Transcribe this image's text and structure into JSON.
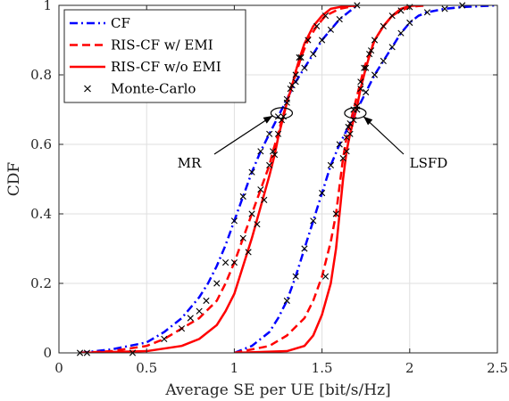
{
  "chart_data": {
    "type": "line",
    "xlabel": "Average SE per UE [bit/s/Hz]",
    "ylabel": "CDF",
    "xlim": [
      0,
      2.5
    ],
    "ylim": [
      0,
      1
    ],
    "xticks": [
      0,
      0.5,
      1,
      1.5,
      2,
      2.5
    ],
    "xtick_labels": [
      "0",
      "0.5",
      "1",
      "1.5",
      "2",
      "2.5"
    ],
    "yticks": [
      0,
      0.2,
      0.4,
      0.6,
      0.8,
      1
    ],
    "ytick_labels": [
      "0",
      "0.2",
      "0.4",
      "0.6",
      "0.8",
      "1"
    ],
    "grid": true,
    "legend_position": "top-left",
    "series": [
      {
        "name": "CF",
        "group": "MR",
        "style": "dashdot",
        "color": "#0000ff",
        "x": [
          0.12,
          0.3,
          0.5,
          0.6,
          0.7,
          0.8,
          0.85,
          0.9,
          0.95,
          1.0,
          1.05,
          1.1,
          1.15,
          1.2,
          1.25,
          1.3,
          1.35,
          1.4,
          1.45,
          1.5,
          1.55,
          1.6,
          1.65,
          1.7
        ],
        "y": [
          0,
          0.01,
          0.03,
          0.06,
          0.1,
          0.16,
          0.2,
          0.25,
          0.31,
          0.38,
          0.45,
          0.52,
          0.58,
          0.63,
          0.68,
          0.73,
          0.78,
          0.82,
          0.86,
          0.9,
          0.93,
          0.96,
          0.98,
          1.0
        ]
      },
      {
        "name": "RIS-CF w/ EMI",
        "group": "MR",
        "style": "dashed",
        "color": "#ff0000",
        "x": [
          0.12,
          0.3,
          0.5,
          0.6,
          0.7,
          0.8,
          0.9,
          0.95,
          1.0,
          1.05,
          1.1,
          1.15,
          1.2,
          1.22,
          1.25,
          1.27,
          1.3,
          1.32,
          1.35,
          1.38,
          1.42,
          1.47,
          1.52,
          1.6,
          1.7
        ],
        "y": [
          0,
          0.005,
          0.02,
          0.04,
          0.07,
          0.1,
          0.15,
          0.2,
          0.26,
          0.33,
          0.4,
          0.47,
          0.54,
          0.58,
          0.63,
          0.67,
          0.72,
          0.76,
          0.8,
          0.85,
          0.9,
          0.94,
          0.97,
          0.99,
          1.0
        ]
      },
      {
        "name": "RIS-CF w/o EMI",
        "group": "MR",
        "style": "solid",
        "color": "#ff0000",
        "x": [
          0.12,
          0.5,
          0.7,
          0.8,
          0.9,
          0.95,
          1.0,
          1.05,
          1.1,
          1.15,
          1.2,
          1.23,
          1.25,
          1.28,
          1.3,
          1.33,
          1.35,
          1.38,
          1.4,
          1.45,
          1.5,
          1.55,
          1.6,
          1.7
        ],
        "y": [
          0,
          0.005,
          0.02,
          0.04,
          0.08,
          0.12,
          0.17,
          0.25,
          0.33,
          0.42,
          0.51,
          0.57,
          0.62,
          0.68,
          0.72,
          0.77,
          0.81,
          0.86,
          0.89,
          0.94,
          0.97,
          0.99,
          0.995,
          1.0
        ]
      },
      {
        "name": "CF",
        "group": "LSFD",
        "style": "dashdot",
        "color": "#0000ff",
        "x": [
          1.0,
          1.1,
          1.2,
          1.25,
          1.3,
          1.35,
          1.4,
          1.45,
          1.5,
          1.55,
          1.6,
          1.65,
          1.7,
          1.75,
          1.8,
          1.85,
          1.9,
          1.95,
          2.0,
          2.05,
          2.1,
          2.2,
          2.3,
          2.5
        ],
        "y": [
          0,
          0.02,
          0.06,
          0.1,
          0.15,
          0.22,
          0.3,
          0.38,
          0.46,
          0.54,
          0.6,
          0.65,
          0.7,
          0.75,
          0.8,
          0.84,
          0.88,
          0.92,
          0.95,
          0.97,
          0.98,
          0.99,
          0.995,
          1.0
        ]
      },
      {
        "name": "RIS-CF w/ EMI",
        "group": "LSFD",
        "style": "dashed",
        "color": "#ff0000",
        "x": [
          1.0,
          1.2,
          1.3,
          1.4,
          1.45,
          1.5,
          1.55,
          1.58,
          1.6,
          1.62,
          1.64,
          1.66,
          1.68,
          1.7,
          1.72,
          1.74,
          1.77,
          1.8,
          1.85,
          1.9,
          1.95,
          2.0,
          2.05,
          2.1
        ],
        "y": [
          0,
          0.02,
          0.05,
          0.1,
          0.15,
          0.22,
          0.32,
          0.4,
          0.48,
          0.56,
          0.62,
          0.66,
          0.7,
          0.74,
          0.78,
          0.82,
          0.86,
          0.9,
          0.94,
          0.97,
          0.985,
          0.995,
          0.998,
          1.0
        ]
      },
      {
        "name": "RIS-CF w/o EMI",
        "group": "LSFD",
        "style": "solid",
        "color": "#ff0000",
        "x": [
          1.0,
          1.3,
          1.4,
          1.45,
          1.5,
          1.55,
          1.58,
          1.6,
          1.62,
          1.64,
          1.66,
          1.68,
          1.7,
          1.72,
          1.75,
          1.78,
          1.8,
          1.85,
          1.9,
          1.95,
          2.0,
          2.05
        ],
        "y": [
          0,
          0.005,
          0.02,
          0.05,
          0.11,
          0.2,
          0.3,
          0.4,
          0.5,
          0.58,
          0.63,
          0.67,
          0.71,
          0.76,
          0.82,
          0.87,
          0.9,
          0.94,
          0.97,
          0.99,
          0.998,
          1.0
        ]
      },
      {
        "name": "Monte-Carlo",
        "style": "markers-x",
        "color": "#000000",
        "x": [
          0.12,
          0.16,
          0.42,
          0.6,
          0.7,
          0.75,
          0.8,
          0.84,
          0.9,
          0.95,
          1.0,
          1.05,
          1.1,
          1.15,
          1.2,
          1.25,
          1.3,
          1.35,
          1.4,
          1.45,
          1.5,
          1.55,
          1.6,
          1.7,
          1.0,
          1.05,
          1.1,
          1.15,
          1.2,
          1.22,
          1.25,
          1.27,
          1.3,
          1.32,
          1.35,
          1.38,
          1.42,
          1.47,
          1.52,
          1.08,
          1.13,
          1.17,
          1.23,
          1.28,
          1.33,
          1.37,
          1.3,
          1.35,
          1.4,
          1.45,
          1.5,
          1.55,
          1.6,
          1.65,
          1.7,
          1.75,
          1.8,
          1.85,
          1.9,
          1.95,
          2.0,
          2.1,
          2.2,
          2.3,
          1.52,
          1.58,
          1.62,
          1.64,
          1.66,
          1.68,
          1.72,
          1.74,
          1.77,
          1.8,
          1.85,
          1.9,
          1.95,
          2.0,
          1.64,
          1.66,
          1.68,
          1.7,
          1.72,
          1.75,
          1.78
        ],
        "y": [
          0,
          0,
          0,
          0.04,
          0.07,
          0.1,
          0.12,
          0.15,
          0.2,
          0.26,
          0.38,
          0.45,
          0.52,
          0.58,
          0.63,
          0.68,
          0.73,
          0.78,
          0.82,
          0.86,
          0.9,
          0.93,
          0.96,
          1.0,
          0.26,
          0.33,
          0.4,
          0.47,
          0.54,
          0.58,
          0.63,
          0.67,
          0.72,
          0.76,
          0.8,
          0.85,
          0.9,
          0.94,
          0.97,
          0.29,
          0.37,
          0.44,
          0.57,
          0.68,
          0.77,
          0.85,
          0.15,
          0.22,
          0.3,
          0.38,
          0.46,
          0.54,
          0.6,
          0.65,
          0.7,
          0.75,
          0.8,
          0.84,
          0.88,
          0.92,
          0.95,
          0.98,
          0.99,
          1.0,
          0.22,
          0.4,
          0.56,
          0.62,
          0.66,
          0.7,
          0.78,
          0.82,
          0.86,
          0.9,
          0.94,
          0.97,
          0.985,
          0.995,
          0.58,
          0.63,
          0.67,
          0.71,
          0.76,
          0.82,
          0.87
        ]
      }
    ],
    "annotations": [
      {
        "text": "MR",
        "target_x": 1.27,
        "target_y": 0.69
      },
      {
        "text": "LSFD",
        "target_x": 1.69,
        "target_y": 0.69
      }
    ],
    "legend": [
      {
        "label": "CF",
        "style": "dashdot",
        "color": "#0000ff"
      },
      {
        "label": "RIS-CF w/ EMI",
        "style": "dashed",
        "color": "#ff0000"
      },
      {
        "label": "RIS-CF w/o EMI",
        "style": "solid",
        "color": "#ff0000"
      },
      {
        "label": "Monte-Carlo",
        "style": "markers-x",
        "color": "#000000"
      }
    ]
  }
}
